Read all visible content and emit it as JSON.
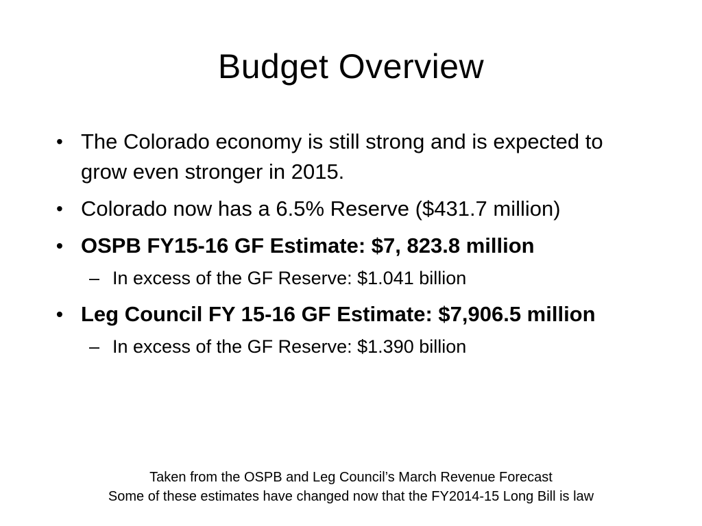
{
  "slide": {
    "title": "Budget Overview",
    "bullets": [
      {
        "text": "The Colorado economy is still strong and is expected to grow even stronger in 2015."
      },
      {
        "text": "Colorado now has a 6.5% Reserve ($431.7 million)"
      },
      {
        "text": "OSPB FY15-16 GF Estimate: $7, 823.8 million",
        "sub": "In excess of the GF Reserve: $1.041 billion"
      },
      {
        "text": "Leg Council FY 15-16 GF Estimate: $7,906.5 million",
        "sub": "In excess of the GF Reserve: $1.390 billion"
      }
    ],
    "bullet_symbol": "•",
    "sub_symbol": "–",
    "footnote": {
      "line1": "Taken from the OSPB and Leg Council’s March Revenue Forecast",
      "line2": "Some of these estimates have changed now that the FY2014-15 Long Bill is law"
    }
  }
}
